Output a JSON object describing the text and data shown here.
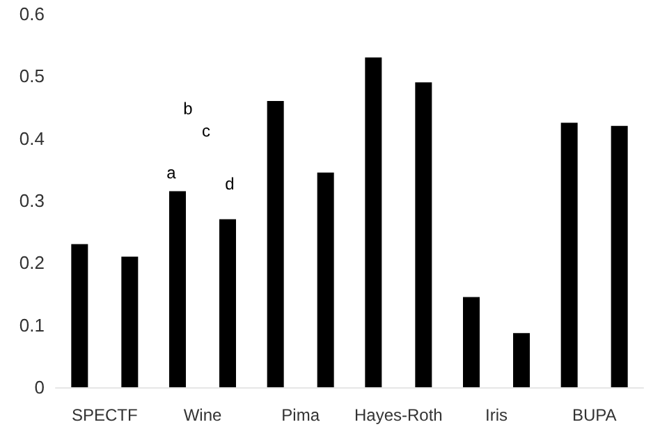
{
  "chart_data": {
    "type": "bar",
    "categories": [
      "SPECTF",
      "Wine",
      "Pima",
      "Hayes-Roth",
      "Iris",
      "BUPA"
    ],
    "series": [
      {
        "color": "#000000",
        "values": [
          0.23,
          0.315,
          0.46,
          0.53,
          0.145,
          0.425
        ]
      },
      {
        "color": "#000000",
        "values": [
          0.21,
          0.27,
          0.345,
          0.49,
          0.087,
          0.42
        ]
      }
    ],
    "ylim": [
      0,
      0.6
    ],
    "yticks": [
      0,
      0.1,
      0.2,
      0.3,
      0.4,
      0.5,
      0.6
    ],
    "grid": false,
    "annotations": [
      "a",
      "b",
      "c",
      "d"
    ]
  }
}
